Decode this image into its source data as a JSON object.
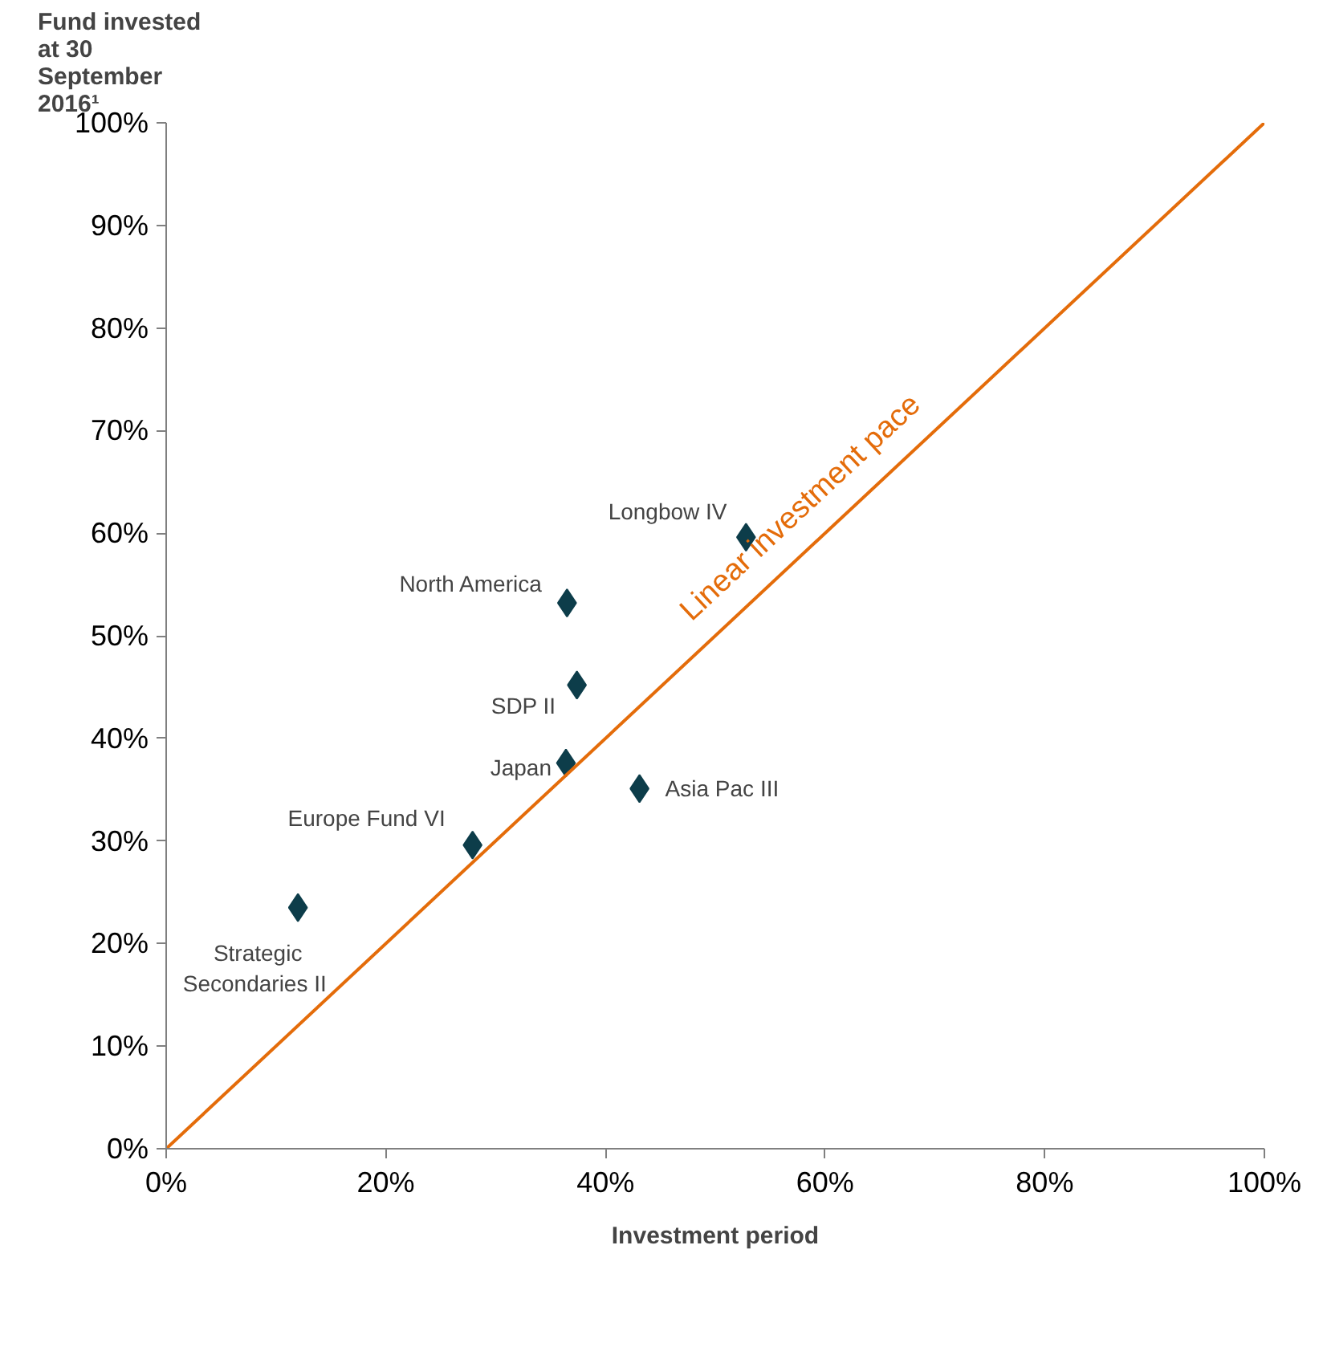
{
  "chart_data": {
    "type": "scatter",
    "ylabel": "Fund invested\nat 30\nSeptember\n2016¹",
    "xlabel": "Investment period",
    "xlim": [
      0,
      100
    ],
    "ylim": [
      0,
      100
    ],
    "xticks": [
      {
        "value": 0,
        "label": "0%"
      },
      {
        "value": 20,
        "label": "20%"
      },
      {
        "value": 40,
        "label": "40%"
      },
      {
        "value": 60,
        "label": "60%"
      },
      {
        "value": 80,
        "label": "80%"
      },
      {
        "value": 100,
        "label": "100%"
      }
    ],
    "yticks": [
      {
        "value": 0,
        "label": "0%"
      },
      {
        "value": 10,
        "label": "10%"
      },
      {
        "value": 20,
        "label": "20%"
      },
      {
        "value": 30,
        "label": "30%"
      },
      {
        "value": 40,
        "label": "40%"
      },
      {
        "value": 50,
        "label": "50%"
      },
      {
        "value": 60,
        "label": "60%"
      },
      {
        "value": 70,
        "label": "70%"
      },
      {
        "value": 80,
        "label": "80%"
      },
      {
        "value": 90,
        "label": "90%"
      },
      {
        "value": 100,
        "label": "100%"
      }
    ],
    "grid": false,
    "series": [
      {
        "marker": "diamond",
        "color": "#0d3d4a",
        "x": [
          52.8,
          36.5,
          37.4,
          36.4,
          43.1,
          27.9,
          12.0
        ],
        "values": [
          59.6,
          53.2,
          45.2,
          37.6,
          35.1,
          29.6,
          23.5
        ]
      },
      {
        "type": "line",
        "name": "Linear investment pace",
        "color": "#e46c0a",
        "x": [
          0,
          100
        ],
        "values": [
          0,
          100
        ]
      }
    ],
    "annotations": [
      {
        "text": "Longbow  IV",
        "x": 52.8,
        "y": 59.6
      },
      {
        "text": "North America",
        "x": 36.5,
        "y": 53.2
      },
      {
        "text": "SDP II",
        "x": 37.4,
        "y": 45.2
      },
      {
        "text": "Japan",
        "x": 36.4,
        "y": 37.6
      },
      {
        "text": "Asia Pac III",
        "x": 43.1,
        "y": 35.1
      },
      {
        "text": "Europe Fund VI",
        "x": 27.9,
        "y": 29.6
      },
      {
        "text": "Strategic\nSecondaries  II",
        "x": 12.0,
        "y": 23.5
      }
    ]
  }
}
